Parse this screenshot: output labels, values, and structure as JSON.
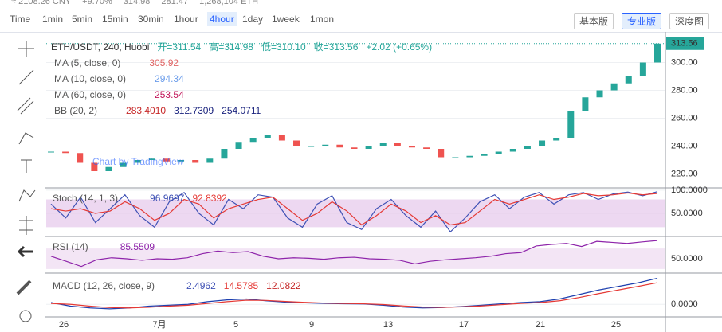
{
  "header": {
    "items": [
      "≈ 2108.26 CNY",
      "+9.70%",
      "314.98",
      "281.47",
      "1,268,104 ETH"
    ]
  },
  "toolbar": {
    "timeframes": [
      "Time",
      "1min",
      "5min",
      "15min",
      "30min",
      "1hour",
      "4hour",
      "1day",
      "1week",
      "1mon"
    ],
    "active": "4hour",
    "buttons": [
      "基本版",
      "专业版",
      "深度图"
    ],
    "active_button": "专业版"
  },
  "chart": {
    "legend": {
      "symbol": "ETH/USDT, 240, Huobi",
      "open": "开=311.54",
      "high": "高=314.98",
      "low": "低=310.10",
      "close": "收=313.56",
      "change": "+2.02 (+0.65%)"
    },
    "studies": [
      {
        "name": "MA (5, close, 0)",
        "values": [
          "305.92"
        ],
        "colors": [
          "#e06666"
        ]
      },
      {
        "name": "MA (10, close, 0)",
        "values": [
          "294.34"
        ],
        "colors": [
          "#6d9eeb"
        ]
      },
      {
        "name": "MA (60, close, 0)",
        "values": [
          "253.54"
        ],
        "colors": [
          "#c2185b"
        ]
      },
      {
        "name": "BB (20, 2)",
        "values": [
          "283.4010",
          "312.7309",
          "254.0711"
        ],
        "colors": [
          "#c62828",
          "#1a237e",
          "#1a237e"
        ]
      }
    ],
    "watermark": "Chart by TradingView",
    "main": {
      "ylim": [
        210,
        322
      ],
      "yticks": [
        {
          "value": 300,
          "label": "300.00"
        },
        {
          "value": 280,
          "label": "280.00"
        },
        {
          "value": 260,
          "label": "260.00"
        },
        {
          "value": 240,
          "label": "240.00"
        },
        {
          "value": 220,
          "label": "220.00"
        }
      ],
      "last": {
        "value": 313.56,
        "label": "313.56"
      },
      "close": [
        236,
        235,
        228,
        222,
        225,
        228,
        230,
        231,
        229,
        230,
        228,
        231,
        238,
        243,
        246,
        248,
        244,
        240,
        240,
        241,
        239,
        238,
        240,
        242,
        240,
        239,
        238,
        232,
        232,
        233,
        234,
        236,
        238,
        240,
        244,
        246,
        265,
        275,
        280,
        285,
        290,
        300,
        313.56
      ]
    },
    "stoch": {
      "name": "Stoch (14, 1, 3)",
      "labels": [
        "96.9697",
        "92.8392"
      ],
      "ylim": [
        0,
        105
      ],
      "yticks": [
        {
          "value": 100,
          "label": "100.0000"
        },
        {
          "value": 50,
          "label": "50.0000"
        }
      ],
      "k": [
        70,
        40,
        85,
        30,
        60,
        90,
        45,
        20,
        75,
        95,
        50,
        25,
        80,
        60,
        90,
        85,
        40,
        20,
        70,
        88,
        30,
        15,
        60,
        80,
        45,
        20,
        55,
        10,
        40,
        75,
        90,
        60,
        85,
        95,
        70,
        90,
        95,
        80,
        92,
        96,
        88,
        97
      ],
      "d": [
        60,
        55,
        60,
        50,
        55,
        75,
        60,
        35,
        50,
        80,
        70,
        40,
        60,
        70,
        80,
        85,
        60,
        35,
        50,
        75,
        55,
        25,
        45,
        70,
        55,
        30,
        45,
        25,
        30,
        55,
        80,
        70,
        80,
        90,
        80,
        85,
        93,
        88,
        90,
        94,
        90,
        93
      ]
    },
    "rsi": {
      "name": "RSI (14)",
      "labels": [
        "85.5509"
      ],
      "ylim": [
        22,
        92
      ],
      "yticks": [
        {
          "value": 50,
          "label": "50.0000"
        }
      ],
      "values": [
        55,
        45,
        35,
        48,
        52,
        50,
        47,
        50,
        49,
        52,
        60,
        65,
        62,
        64,
        55,
        50,
        52,
        51,
        49,
        52,
        53,
        50,
        49,
        47,
        40,
        45,
        48,
        50,
        52,
        55,
        60,
        62,
        75,
        78,
        80,
        74,
        84,
        82,
        80,
        83,
        85.5509
      ]
    },
    "macd": {
      "name": "MACD (12, 26, close, 9)",
      "labels": [
        "2.4962",
        "14.5785",
        "12.0822"
      ],
      "ylim": [
        -7,
        17
      ],
      "yticks": [
        {
          "value": 0,
          "label": "0.0000"
        }
      ],
      "macd": [
        1,
        -1,
        -2,
        -2.5,
        -2,
        -1,
        -0.5,
        0,
        1.5,
        2.5,
        3,
        2,
        1.2,
        0.8,
        0.5,
        0.3,
        0.2,
        -0.5,
        -1.5,
        -2,
        -1.8,
        -1.2,
        -0.5,
        0.3,
        1,
        1.5,
        3,
        5.5,
        8,
        10,
        12,
        14.5785
      ],
      "signal": [
        0.5,
        0,
        -1,
        -1.8,
        -2,
        -1.6,
        -1,
        -0.5,
        0.5,
        1.5,
        2.3,
        2.2,
        1.6,
        1.1,
        0.7,
        0.5,
        0.3,
        -0.1,
        -0.9,
        -1.5,
        -1.7,
        -1.4,
        -0.9,
        -0.2,
        0.5,
        1,
        2,
        3.8,
        6,
        8,
        10,
        12.0822
      ]
    },
    "xticks": [
      "26",
      "7月",
      "5",
      "9",
      "13",
      "17",
      "21",
      "25"
    ]
  }
}
